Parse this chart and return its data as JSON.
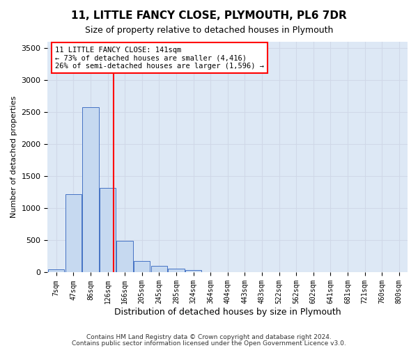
{
  "title": "11, LITTLE FANCY CLOSE, PLYMOUTH, PL6 7DR",
  "subtitle": "Size of property relative to detached houses in Plymouth",
  "xlabel": "Distribution of detached houses by size in Plymouth",
  "ylabel": "Number of detached properties",
  "annotation_line1": "11 LITTLE FANCY CLOSE: 141sqm",
  "annotation_line2": "← 73% of detached houses are smaller (4,416)",
  "annotation_line3": "26% of semi-detached houses are larger (1,596) →",
  "bin_labels": [
    "7sqm",
    "47sqm",
    "86sqm",
    "126sqm",
    "166sqm",
    "205sqm",
    "245sqm",
    "285sqm",
    "324sqm",
    "364sqm",
    "404sqm",
    "443sqm",
    "483sqm",
    "522sqm",
    "562sqm",
    "602sqm",
    "641sqm",
    "681sqm",
    "721sqm",
    "760sqm",
    "800sqm"
  ],
  "bar_values": [
    50,
    1220,
    2580,
    1320,
    490,
    175,
    100,
    55,
    35,
    5,
    0,
    0,
    0,
    0,
    0,
    0,
    0,
    0,
    0,
    0,
    0
  ],
  "bar_color": "#c6d9f0",
  "bar_edge_color": "#4472c4",
  "red_line_x": 3.35,
  "ylim": [
    0,
    3600
  ],
  "yticks": [
    0,
    500,
    1000,
    1500,
    2000,
    2500,
    3000,
    3500
  ],
  "grid_color": "#d0d8e8",
  "background_color": "#dde8f5",
  "footer_line1": "Contains HM Land Registry data © Crown copyright and database right 2024.",
  "footer_line2": "Contains public sector information licensed under the Open Government Licence v3.0."
}
